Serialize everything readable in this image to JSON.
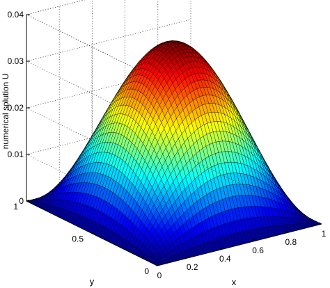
{
  "chart_data": {
    "type": "surface",
    "zlabel": "numerical solution U",
    "xlabel": "x",
    "ylabel": "y",
    "xlim": [
      0,
      1
    ],
    "ylim": [
      0,
      1
    ],
    "zlim": [
      0,
      0.04
    ],
    "x_ticks": [
      "0",
      "0.2",
      "0.4",
      "0.6",
      "0.8",
      "1"
    ],
    "y_ticks": [
      "0",
      "0.5",
      "1"
    ],
    "z_ticks": [
      "0",
      "0.01",
      "0.02",
      "0.03",
      "0.04"
    ],
    "surface_function": "U(x,y) = 0.0365 * sin(pi*x) * sin(pi*y)",
    "peak": {
      "x": 0.5,
      "y": 0.5,
      "U": 0.0365
    },
    "mesh": 50,
    "colormap": "jet",
    "grid": true
  }
}
